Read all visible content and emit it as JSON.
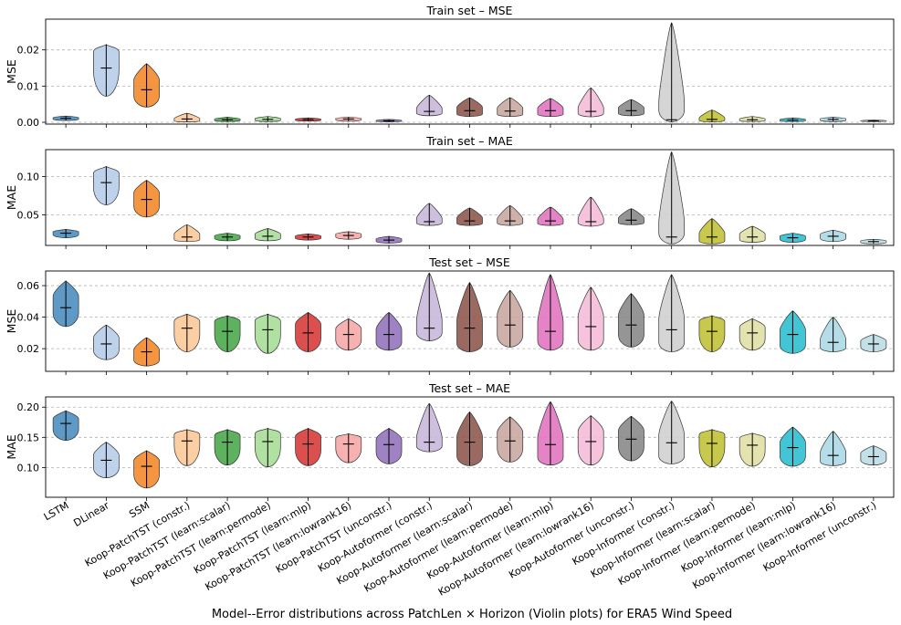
{
  "figure": {
    "xlabel": "Model--Error distributions across PatchLen × Horizon (Violin plots) for ERA5 Wind Speed"
  },
  "chart_data": {
    "type": "violin",
    "categories": [
      "LSTM",
      "DLinear",
      "SSM",
      "Koop-PatchTST (constr.)",
      "Koop-PatchTST (learn:scalar)",
      "Koop-PatchTST (learn:permode)",
      "Koop-PatchTST (learn:mlp)",
      "Koop-PatchTST (learn:lowrank16)",
      "Koop-PatchTST (unconstr.)",
      "Koop-Autoformer (constr.)",
      "Koop-Autoformer (learn:scalar)",
      "Koop-Autoformer (learn:permode)",
      "Koop-Autoformer (learn:mlp)",
      "Koop-Autoformer (learn:lowrank16)",
      "Koop-Autoformer (unconstr.)",
      "Koop-Informer (constr.)",
      "Koop-Informer (learn:scalar)",
      "Koop-Informer (learn:permode)",
      "Koop-Informer (learn:mlp)",
      "Koop-Informer (learn:lowrank16)",
      "Koop-Informer (unconstr.)"
    ],
    "colors": [
      "#4e8fc0",
      "#b8cde9",
      "#f28a2c",
      "#fbc99a",
      "#4da84d",
      "#a9de98",
      "#d83c3c",
      "#f7a9a9",
      "#9574bd",
      "#c8b8d9",
      "#8f5a50",
      "#caa8a2",
      "#e177c0",
      "#f4bcd7",
      "#8a8a8a",
      "#d0d0d0",
      "#c2c238",
      "#e0e0a6",
      "#2ebfcf",
      "#add9e6",
      "#bddde6"
    ],
    "panels": [
      {
        "title": "Train set – MSE",
        "ylabel": "MSE",
        "ylim": [
          -0.0005,
          0.0285
        ],
        "yticks": [
          0.0,
          0.01,
          0.02
        ],
        "ytick_labels": [
          "0.00",
          "0.01",
          "0.02"
        ],
        "violins": [
          {
            "min": 0.0005,
            "max": 0.0017,
            "median": 0.0011,
            "mode": 0.0011
          },
          {
            "min": 0.0072,
            "max": 0.0215,
            "median": 0.015,
            "mode": 0.017
          },
          {
            "min": 0.0042,
            "max": 0.0162,
            "median": 0.009,
            "mode": 0.0095
          },
          {
            "min": 0.0001,
            "max": 0.0025,
            "median": 0.0009,
            "mode": 0.0006
          },
          {
            "min": 0.0002,
            "max": 0.0014,
            "median": 0.0007,
            "mode": 0.0007
          },
          {
            "min": 0.0002,
            "max": 0.0016,
            "median": 0.0008,
            "mode": 0.0008
          },
          {
            "min": 0.0003,
            "max": 0.0012,
            "median": 0.0007,
            "mode": 0.0007
          },
          {
            "min": 0.0003,
            "max": 0.0014,
            "median": 0.0009,
            "mode": 0.0009
          },
          {
            "min": 0.0001,
            "max": 0.0008,
            "median": 0.0004,
            "mode": 0.0004
          },
          {
            "min": 0.0018,
            "max": 0.0075,
            "median": 0.003,
            "mode": 0.0028
          },
          {
            "min": 0.0016,
            "max": 0.0068,
            "median": 0.0032,
            "mode": 0.0032
          },
          {
            "min": 0.0016,
            "max": 0.0068,
            "median": 0.0031,
            "mode": 0.003
          },
          {
            "min": 0.0016,
            "max": 0.0066,
            "median": 0.0032,
            "mode": 0.003
          },
          {
            "min": 0.0015,
            "max": 0.0095,
            "median": 0.003,
            "mode": 0.0025
          },
          {
            "min": 0.0018,
            "max": 0.0063,
            "median": 0.0032,
            "mode": 0.0032
          },
          {
            "min": 0.0001,
            "max": 0.0275,
            "median": 0.0007,
            "mode": 0.0005
          },
          {
            "min": 0.0001,
            "max": 0.0034,
            "median": 0.0008,
            "mode": 0.0006
          },
          {
            "min": 0.0002,
            "max": 0.0016,
            "median": 0.0007,
            "mode": 0.0007
          },
          {
            "min": 0.0002,
            "max": 0.0012,
            "median": 0.0006,
            "mode": 0.0006
          },
          {
            "min": 0.0002,
            "max": 0.0014,
            "median": 0.0008,
            "mode": 0.0008
          },
          {
            "min": 0.0002,
            "max": 0.0006,
            "median": 0.0004,
            "mode": 0.0004
          }
        ]
      },
      {
        "title": "Train set – MAE",
        "ylabel": "MAE",
        "ylim": [
          0.01,
          0.135
        ],
        "yticks": [
          0.05,
          0.1
        ],
        "ytick_labels": [
          "0.05",
          "0.10"
        ],
        "violins": [
          {
            "min": 0.02,
            "max": 0.031,
            "median": 0.026,
            "mode": 0.026
          },
          {
            "min": 0.063,
            "max": 0.113,
            "median": 0.092,
            "mode": 0.095
          },
          {
            "min": 0.047,
            "max": 0.095,
            "median": 0.07,
            "mode": 0.07
          },
          {
            "min": 0.015,
            "max": 0.037,
            "median": 0.021,
            "mode": 0.021
          },
          {
            "min": 0.016,
            "max": 0.026,
            "median": 0.021,
            "mode": 0.021
          },
          {
            "min": 0.016,
            "max": 0.032,
            "median": 0.022,
            "mode": 0.022
          },
          {
            "min": 0.017,
            "max": 0.025,
            "median": 0.021,
            "mode": 0.021
          },
          {
            "min": 0.018,
            "max": 0.028,
            "median": 0.023,
            "mode": 0.023
          },
          {
            "min": 0.013,
            "max": 0.022,
            "median": 0.017,
            "mode": 0.017
          },
          {
            "min": 0.036,
            "max": 0.065,
            "median": 0.041,
            "mode": 0.04
          },
          {
            "min": 0.036,
            "max": 0.059,
            "median": 0.042,
            "mode": 0.042
          },
          {
            "min": 0.036,
            "max": 0.062,
            "median": 0.042,
            "mode": 0.04
          },
          {
            "min": 0.036,
            "max": 0.06,
            "median": 0.042,
            "mode": 0.04
          },
          {
            "min": 0.035,
            "max": 0.073,
            "median": 0.041,
            "mode": 0.038
          },
          {
            "min": 0.037,
            "max": 0.058,
            "median": 0.043,
            "mode": 0.042
          },
          {
            "min": 0.012,
            "max": 0.132,
            "median": 0.021,
            "mode": 0.018
          },
          {
            "min": 0.012,
            "max": 0.045,
            "median": 0.021,
            "mode": 0.02
          },
          {
            "min": 0.014,
            "max": 0.035,
            "median": 0.021,
            "mode": 0.021
          },
          {
            "min": 0.014,
            "max": 0.026,
            "median": 0.02,
            "mode": 0.02
          },
          {
            "min": 0.015,
            "max": 0.03,
            "median": 0.022,
            "mode": 0.022
          },
          {
            "min": 0.012,
            "max": 0.018,
            "median": 0.015,
            "mode": 0.015
          }
        ]
      },
      {
        "title": "Test set – MSE",
        "ylabel": "MSE",
        "ylim": [
          0.0056,
          0.0693
        ],
        "yticks": [
          0.02,
          0.04,
          0.06
        ],
        "ytick_labels": [
          "0.02",
          "0.04",
          "0.06"
        ],
        "violins": [
          {
            "min": 0.034,
            "max": 0.063,
            "median": 0.046,
            "mode": 0.048
          },
          {
            "min": 0.013,
            "max": 0.035,
            "median": 0.023,
            "mode": 0.023
          },
          {
            "min": 0.009,
            "max": 0.027,
            "median": 0.018,
            "mode": 0.016
          },
          {
            "min": 0.018,
            "max": 0.042,
            "median": 0.033,
            "mode": 0.033
          },
          {
            "min": 0.018,
            "max": 0.041,
            "median": 0.031,
            "mode": 0.033
          },
          {
            "min": 0.017,
            "max": 0.042,
            "median": 0.032,
            "mode": 0.033
          },
          {
            "min": 0.018,
            "max": 0.043,
            "median": 0.03,
            "mode": 0.031
          },
          {
            "min": 0.019,
            "max": 0.039,
            "median": 0.029,
            "mode": 0.029
          },
          {
            "min": 0.019,
            "max": 0.043,
            "median": 0.029,
            "mode": 0.028
          },
          {
            "min": 0.025,
            "max": 0.068,
            "median": 0.033,
            "mode": 0.03
          },
          {
            "min": 0.018,
            "max": 0.062,
            "median": 0.033,
            "mode": 0.03
          },
          {
            "min": 0.021,
            "max": 0.057,
            "median": 0.035,
            "mode": 0.035
          },
          {
            "min": 0.019,
            "max": 0.067,
            "median": 0.031,
            "mode": 0.028
          },
          {
            "min": 0.019,
            "max": 0.059,
            "median": 0.034,
            "mode": 0.033
          },
          {
            "min": 0.021,
            "max": 0.055,
            "median": 0.035,
            "mode": 0.035
          },
          {
            "min": 0.018,
            "max": 0.067,
            "median": 0.032,
            "mode": 0.03
          },
          {
            "min": 0.018,
            "max": 0.041,
            "median": 0.031,
            "mode": 0.033
          },
          {
            "min": 0.019,
            "max": 0.039,
            "median": 0.03,
            "mode": 0.03
          },
          {
            "min": 0.017,
            "max": 0.044,
            "median": 0.029,
            "mode": 0.027
          },
          {
            "min": 0.018,
            "max": 0.04,
            "median": 0.024,
            "mode": 0.022
          },
          {
            "min": 0.018,
            "max": 0.029,
            "median": 0.023,
            "mode": 0.023
          }
        ]
      },
      {
        "title": "Test set – MAE",
        "ylabel": "MAE",
        "ylim": [
          0.0507,
          0.217
        ],
        "yticks": [
          0.1,
          0.15,
          0.2
        ],
        "ytick_labels": [
          "0.10",
          "0.15",
          "0.20"
        ],
        "violins": [
          {
            "min": 0.145,
            "max": 0.194,
            "median": 0.173,
            "mode": 0.172
          },
          {
            "min": 0.083,
            "max": 0.142,
            "median": 0.112,
            "mode": 0.11
          },
          {
            "min": 0.066,
            "max": 0.128,
            "median": 0.102,
            "mode": 0.1
          },
          {
            "min": 0.103,
            "max": 0.163,
            "median": 0.144,
            "mode": 0.148
          },
          {
            "min": 0.104,
            "max": 0.163,
            "median": 0.142,
            "mode": 0.142
          },
          {
            "min": 0.101,
            "max": 0.165,
            "median": 0.143,
            "mode": 0.145
          },
          {
            "min": 0.103,
            "max": 0.165,
            "median": 0.139,
            "mode": 0.14
          },
          {
            "min": 0.108,
            "max": 0.156,
            "median": 0.139,
            "mode": 0.14
          },
          {
            "min": 0.106,
            "max": 0.165,
            "median": 0.138,
            "mode": 0.136
          },
          {
            "min": 0.126,
            "max": 0.206,
            "median": 0.142,
            "mode": 0.135
          },
          {
            "min": 0.103,
            "max": 0.192,
            "median": 0.142,
            "mode": 0.135
          },
          {
            "min": 0.109,
            "max": 0.184,
            "median": 0.144,
            "mode": 0.145
          },
          {
            "min": 0.104,
            "max": 0.209,
            "median": 0.138,
            "mode": 0.13
          },
          {
            "min": 0.104,
            "max": 0.186,
            "median": 0.143,
            "mode": 0.145
          },
          {
            "min": 0.111,
            "max": 0.185,
            "median": 0.147,
            "mode": 0.148
          },
          {
            "min": 0.106,
            "max": 0.21,
            "median": 0.141,
            "mode": 0.135
          },
          {
            "min": 0.101,
            "max": 0.163,
            "median": 0.14,
            "mode": 0.145
          },
          {
            "min": 0.102,
            "max": 0.157,
            "median": 0.137,
            "mode": 0.138
          },
          {
            "min": 0.102,
            "max": 0.167,
            "median": 0.133,
            "mode": 0.13
          },
          {
            "min": 0.103,
            "max": 0.16,
            "median": 0.12,
            "mode": 0.115
          },
          {
            "min": 0.104,
            "max": 0.136,
            "median": 0.118,
            "mode": 0.118
          }
        ]
      }
    ]
  }
}
